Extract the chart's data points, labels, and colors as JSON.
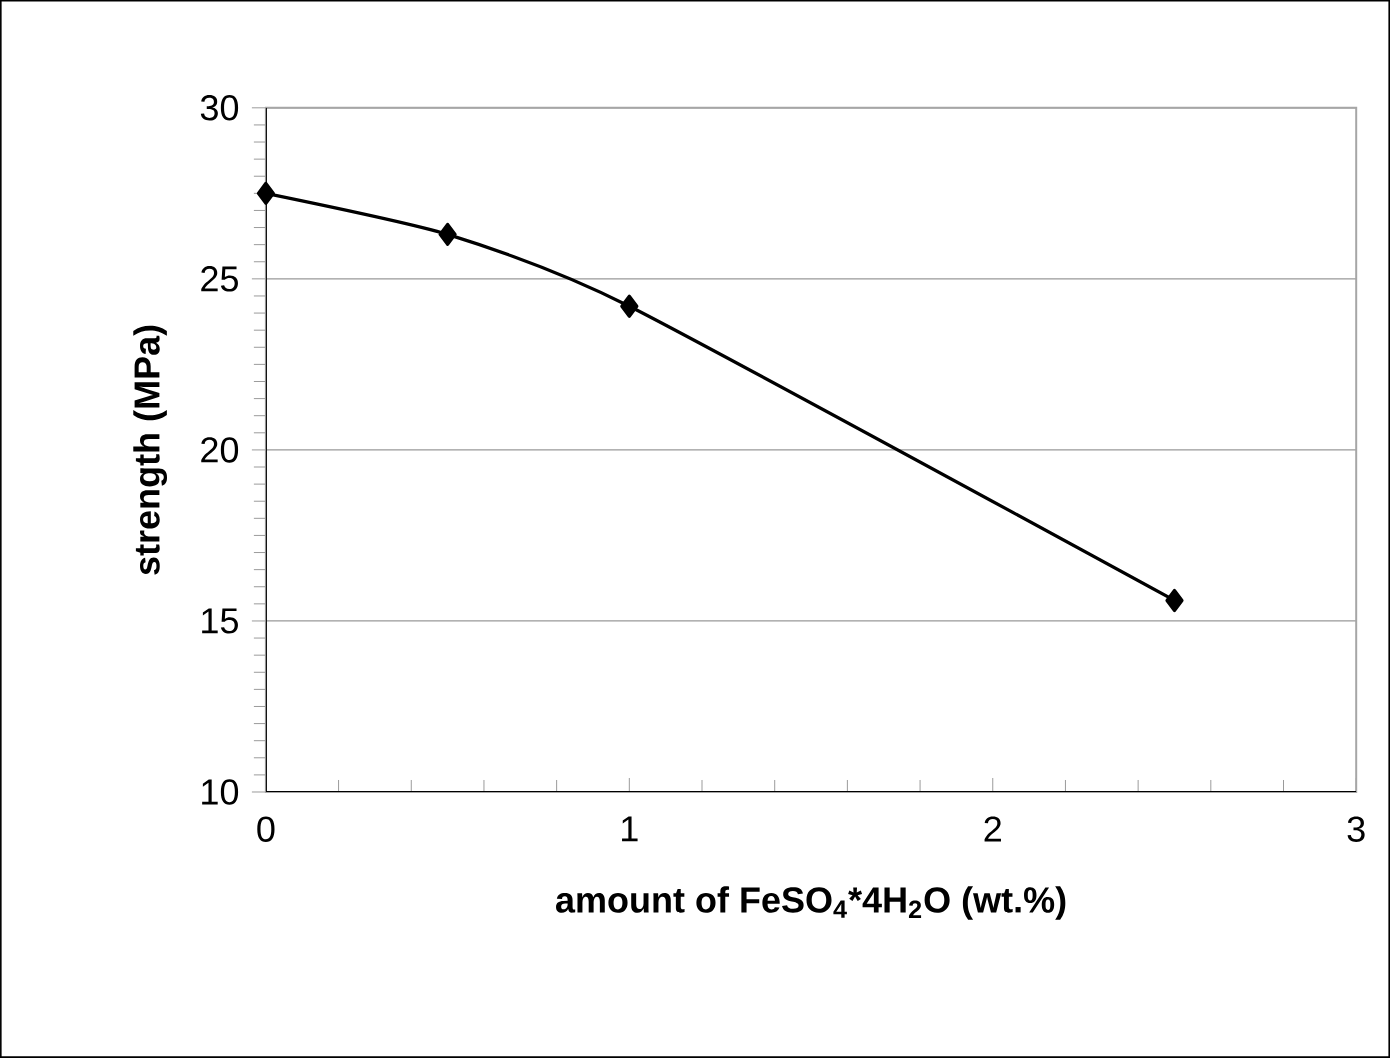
{
  "chart_data": {
    "type": "line",
    "xlabel": "amount of FeSO$_{4}$*4H$_{2}$O (wt.%)",
    "ylabel": "strength (MPa)",
    "x": [
      0,
      0.5,
      1,
      2.5
    ],
    "series": [
      {
        "color": "#000000",
        "values": [
          27.5,
          26.3,
          24.2,
          15.6
        ]
      }
    ],
    "xlim": [
      0,
      3
    ],
    "xticks": [
      0,
      1,
      2,
      3
    ],
    "ylim": [
      10,
      30
    ],
    "yticks": [
      10,
      15,
      20,
      25,
      30
    ],
    "grid": "y",
    "marker": "diamond",
    "line_style": "solid"
  }
}
